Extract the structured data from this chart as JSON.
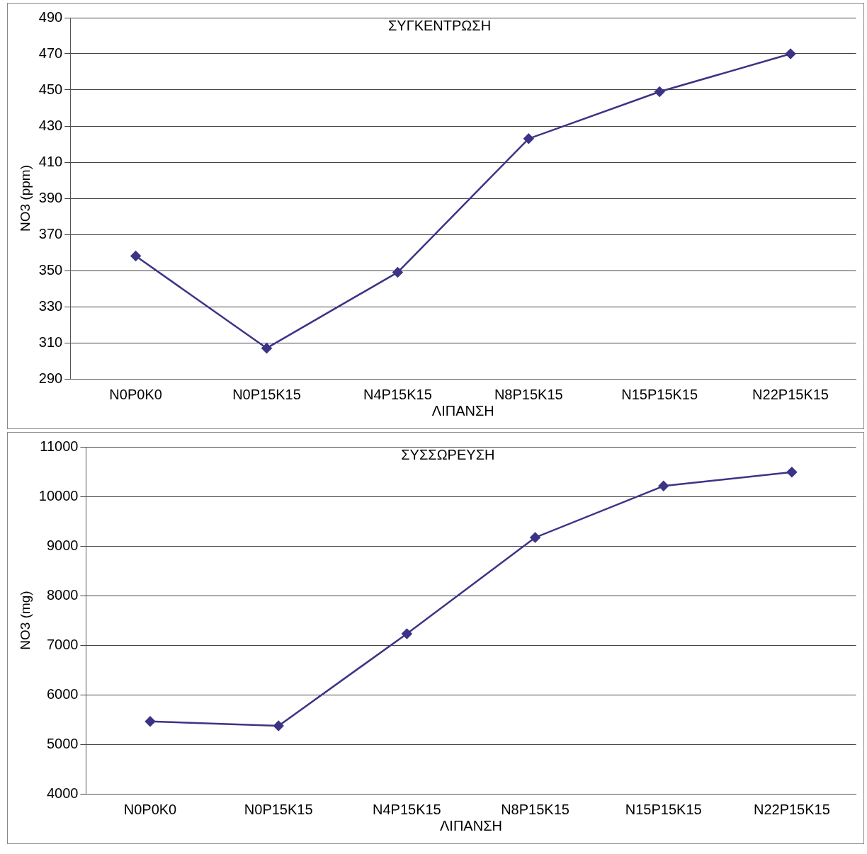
{
  "chart_data": [
    {
      "type": "line",
      "title": "ΣΥΓΚΕΝΤΡΩΣΗ",
      "xlabel": "ΛΙΠΑΝΣΗ",
      "ylabel": "NO3 (ppm)",
      "categories": [
        "N0P0K0",
        "N0P15K15",
        "N4P15K15",
        "N8P15K15",
        "N15P15K15",
        "N22P15K15"
      ],
      "series": [
        {
          "color": "#3b3486",
          "values": [
            358,
            307,
            349,
            423,
            449,
            470
          ]
        }
      ],
      "ylim": [
        290,
        490
      ],
      "yticks": [
        290,
        310,
        330,
        350,
        370,
        390,
        410,
        430,
        450,
        470,
        490
      ],
      "grid": "y",
      "marker": "diamond",
      "line_style": "solid"
    },
    {
      "type": "line",
      "title": "ΣΥΣΣΩΡΕΥΣΗ",
      "xlabel": "ΛΙΠΑΝΣΗ",
      "ylabel": "NO3 (mg)",
      "categories": [
        "N0P0K0",
        "N0P15K15",
        "N4P15K15",
        "N8P15K15",
        "N15P15K15",
        "N22P15K15"
      ],
      "series": [
        {
          "color": "#3b3486",
          "values": [
            5460,
            5370,
            7230,
            9170,
            10210,
            10490
          ]
        }
      ],
      "ylim": [
        4000,
        11000
      ],
      "yticks": [
        4000,
        5000,
        6000,
        7000,
        8000,
        9000,
        10000,
        11000
      ],
      "grid": "y",
      "marker": "diamond",
      "line_style": "solid"
    }
  ]
}
